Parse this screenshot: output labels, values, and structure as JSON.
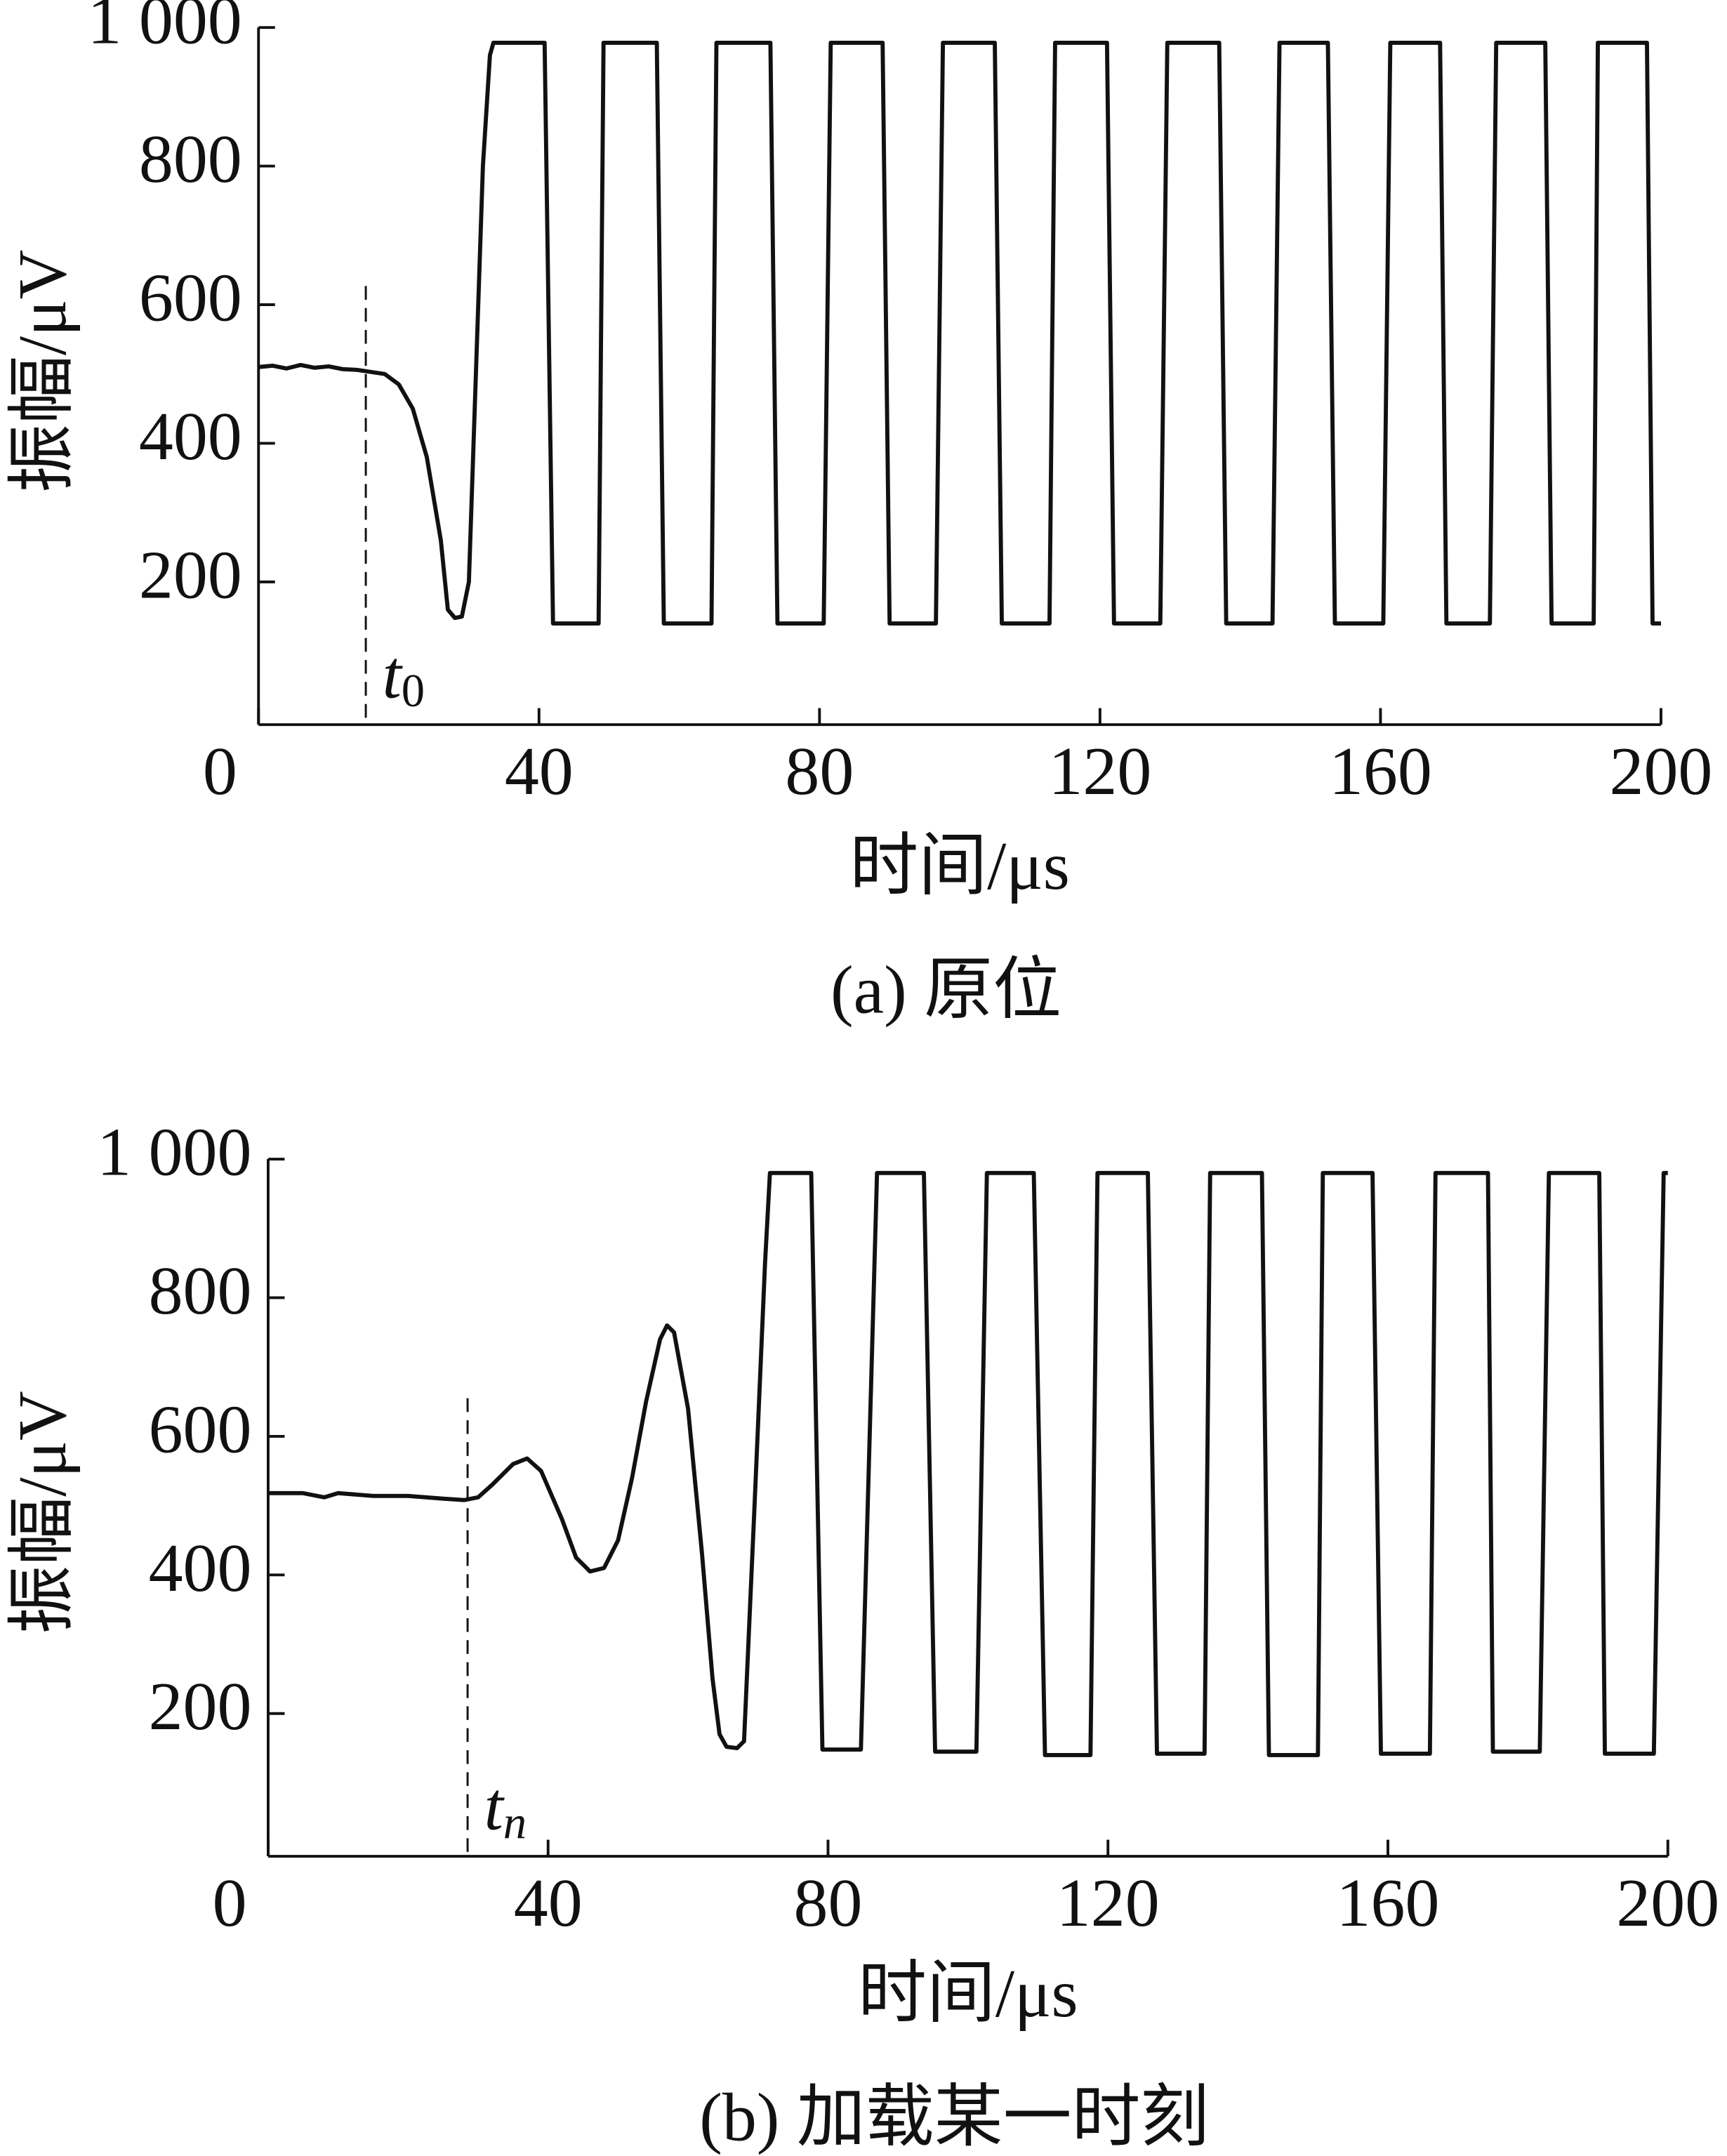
{
  "chart_data": [
    {
      "type": "line",
      "caption": "(a) 原位",
      "xlabel": "时间/μs",
      "ylabel": "振幅/μV",
      "xlim": [
        0,
        200
      ],
      "ylim": [
        0,
        1000
      ],
      "xticks": [
        0,
        40,
        80,
        120,
        160,
        200
      ],
      "yticks": [
        200,
        400,
        600,
        800,
        {
          "value": 1000,
          "label": "1 000"
        }
      ],
      "color": "#111111",
      "marker": {
        "x": 15.3,
        "top": 627,
        "label": "t",
        "subscript": "0"
      },
      "x": [
        0,
        2,
        4,
        6,
        8,
        10,
        12,
        14,
        16,
        18,
        20,
        22,
        24,
        26,
        27,
        28,
        29,
        30,
        31,
        32,
        33,
        33.5,
        40.8,
        42,
        48.5,
        49.2,
        56.8,
        57.8,
        64.6,
        65.3,
        73,
        74,
        80.6,
        81.6,
        89,
        90,
        96.6,
        97.6,
        105,
        106,
        112.8,
        113.6,
        121,
        122,
        128.6,
        129.6,
        137,
        138,
        144.6,
        145.6,
        152.5,
        153.5,
        160.4,
        161.4,
        168.5,
        169.4,
        175.6,
        176.5,
        183.5,
        184.4,
        190.4,
        191,
        198,
        198.8,
        200
      ],
      "values": [
        510,
        512,
        508,
        513,
        509,
        511,
        507,
        506,
        503,
        500,
        485,
        450,
        380,
        260,
        160,
        148,
        150,
        200,
        500,
        800,
        960,
        978,
        978,
        140,
        140,
        978,
        978,
        140,
        140,
        978,
        978,
        140,
        140,
        978,
        978,
        140,
        140,
        978,
        978,
        140,
        140,
        978,
        978,
        140,
        140,
        978,
        978,
        140,
        140,
        978,
        978,
        140,
        140,
        978,
        978,
        140,
        140,
        978,
        978,
        140,
        140,
        978,
        978,
        140,
        140
      ]
    },
    {
      "type": "line",
      "caption": "(b) 加载某一时刻",
      "xlabel": "时间/μs",
      "ylabel": "振幅/μV",
      "xlim": [
        0,
        200
      ],
      "ylim": [
        0,
        1000
      ],
      "xticks": [
        0,
        40,
        80,
        120,
        160,
        200
      ],
      "yticks": [
        200,
        400,
        600,
        800,
        {
          "value": 1000,
          "label": "1 000"
        }
      ],
      "color": "#111111",
      "marker": {
        "x": 28.5,
        "top": 655,
        "label": "t",
        "subscript": "n"
      },
      "x": [
        0,
        5,
        8,
        10,
        15,
        20,
        25,
        28,
        30,
        32,
        35,
        37,
        39,
        42,
        44,
        46,
        48,
        50,
        52,
        54,
        56,
        57,
        58,
        60,
        62,
        63.5,
        64.5,
        65.5,
        67,
        68,
        69.5,
        71,
        71.7,
        77.6,
        79.2,
        84.7,
        87,
        93.7,
        95.3,
        101.2,
        102.7,
        109.4,
        111,
        117.5,
        118.5,
        125.7,
        127,
        133.8,
        134.6,
        142,
        143,
        150,
        150.7,
        157.8,
        159,
        166,
        166.8,
        174.3,
        175,
        181.7,
        183,
        190.2,
        191,
        198,
        199.4,
        200
      ],
      "values": [
        518,
        518,
        512,
        518,
        514,
        514,
        510,
        508,
        512,
        530,
        560,
        568,
        550,
        480,
        425,
        405,
        410,
        450,
        540,
        650,
        740,
        760,
        750,
        640,
        430,
        250,
        170,
        152,
        150,
        160,
        500,
        850,
        980,
        980,
        148,
        148,
        980,
        980,
        145,
        145,
        980,
        980,
        140,
        140,
        980,
        980,
        142,
        142,
        980,
        980,
        140,
        140,
        980,
        980,
        142,
        142,
        980,
        980,
        145,
        145,
        980,
        980,
        142,
        142,
        980,
        980
      ]
    }
  ]
}
